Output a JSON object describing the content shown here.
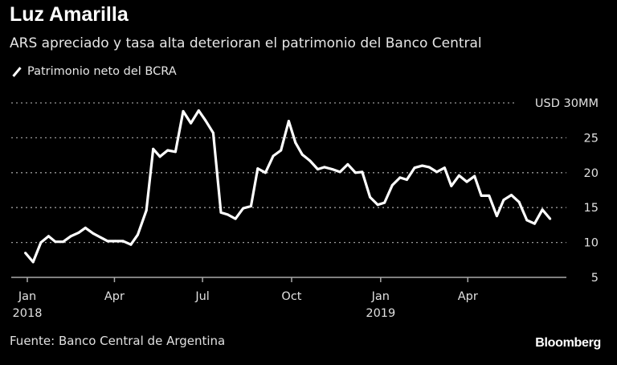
{
  "title": "Luz Amarilla",
  "subtitle": "ARS apreciado y tasa alta deterioran el patrimonio del Banco Central",
  "source": "Fuente: Banco Central de Argentina",
  "logo": "Bloomberg",
  "colors": {
    "background": "#000000",
    "line": "#ffffff",
    "grid": "#9a9a9a",
    "text": "#e0e0e0"
  },
  "chart_data": {
    "type": "line",
    "title": "",
    "xlabel": "",
    "ylabel": "",
    "ylim": [
      5,
      30
    ],
    "grid": true,
    "legend_position": "top-left",
    "y_ticks": [
      {
        "value": 30,
        "label": "USD 30MM"
      },
      {
        "value": 25,
        "label": "25"
      },
      {
        "value": 20,
        "label": "20"
      },
      {
        "value": 15,
        "label": "15"
      },
      {
        "value": 10,
        "label": "10"
      },
      {
        "value": 5,
        "label": "5"
      }
    ],
    "x_ticks": [
      {
        "date": "2018-01-01",
        "label": "Jan",
        "year": "2018"
      },
      {
        "date": "2018-04-01",
        "label": "Apr",
        "year": ""
      },
      {
        "date": "2018-07-01",
        "label": "Jul",
        "year": ""
      },
      {
        "date": "2018-10-01",
        "label": "Oct",
        "year": ""
      },
      {
        "date": "2019-01-01",
        "label": "Jan",
        "year": "2019"
      },
      {
        "date": "2019-04-01",
        "label": "Apr",
        "year": ""
      }
    ],
    "series": [
      {
        "name": "Patrimonio neto del BCRA",
        "x": [
          "2017-12-30",
          "2018-01-07",
          "2018-01-15",
          "2018-01-23",
          "2018-01-30",
          "2018-02-07",
          "2018-02-15",
          "2018-02-23",
          "2018-03-02",
          "2018-03-10",
          "2018-03-18",
          "2018-03-25",
          "2018-04-02",
          "2018-04-10",
          "2018-04-18",
          "2018-04-25",
          "2018-05-04",
          "2018-05-11",
          "2018-05-18",
          "2018-05-26",
          "2018-06-03",
          "2018-06-11",
          "2018-06-19",
          "2018-06-27",
          "2018-07-04",
          "2018-07-12",
          "2018-07-20",
          "2018-07-27",
          "2018-08-04",
          "2018-08-12",
          "2018-08-20",
          "2018-08-27",
          "2018-09-04",
          "2018-09-12",
          "2018-09-20",
          "2018-09-28",
          "2018-10-05",
          "2018-10-12",
          "2018-10-20",
          "2018-10-28",
          "2018-11-04",
          "2018-11-12",
          "2018-11-20",
          "2018-11-28",
          "2018-12-06",
          "2018-12-13",
          "2018-12-21",
          "2018-12-29",
          "2019-01-05",
          "2019-01-13",
          "2019-01-21",
          "2019-01-28",
          "2019-02-05",
          "2019-02-13",
          "2019-02-20",
          "2019-02-28",
          "2019-03-08",
          "2019-03-15",
          "2019-03-23",
          "2019-03-31",
          "2019-04-08",
          "2019-04-15",
          "2019-04-23",
          "2019-05-01",
          "2019-05-08",
          "2019-05-16",
          "2019-05-24",
          "2019-06-01",
          "2019-06-09",
          "2019-06-17",
          "2019-06-25"
        ],
        "values": [
          8.5,
          7.2,
          10.0,
          10.9,
          10.1,
          10.1,
          10.9,
          11.4,
          12.1,
          11.3,
          10.7,
          10.2,
          10.2,
          10.2,
          9.7,
          11.1,
          14.6,
          23.4,
          22.3,
          23.2,
          23.0,
          28.8,
          27.1,
          28.9,
          27.5,
          25.7,
          14.3,
          14.0,
          13.4,
          14.9,
          15.2,
          20.6,
          20.0,
          22.4,
          23.2,
          27.4,
          24.3,
          22.6,
          21.7,
          20.5,
          20.8,
          20.5,
          20.1,
          21.2,
          20.0,
          20.1,
          16.5,
          15.4,
          15.7,
          18.2,
          19.3,
          19.0,
          20.7,
          21.0,
          20.8,
          20.1,
          20.7,
          18.1,
          19.6,
          18.7,
          19.5,
          16.7,
          16.7,
          13.8,
          16.1,
          16.8,
          15.8,
          13.2,
          12.7,
          14.7,
          13.4
        ]
      }
    ]
  }
}
